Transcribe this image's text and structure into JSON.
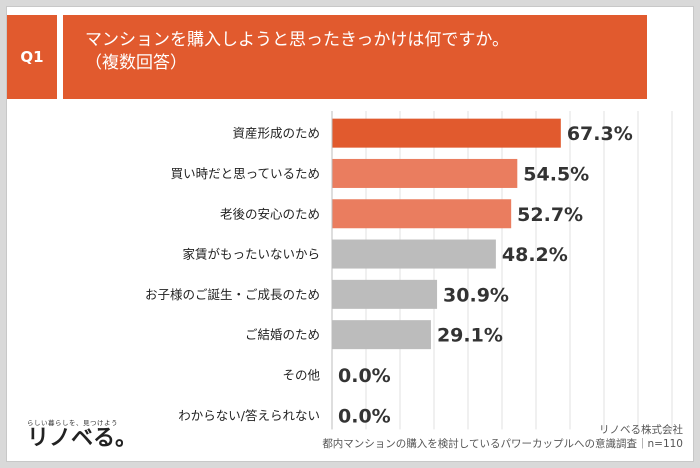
{
  "question": {
    "badge": "Q1",
    "title_line1": "マンションを購入しようと思ったきっかけは何ですか。",
    "title_line2": "（複数回答）"
  },
  "chart_data": {
    "type": "bar",
    "orientation": "horizontal",
    "categories": [
      "資産形成のため",
      "買い時だと思っているため",
      "老後の安心のため",
      "家賃がもったいないから",
      "お子様のご誕生・ご成長のため",
      "ご結婚のため",
      "その他",
      "わからない/答えられない"
    ],
    "values": [
      67.3,
      54.5,
      52.7,
      48.2,
      30.9,
      29.1,
      0.0,
      0.0
    ],
    "value_labels": [
      "67.3%",
      "54.5%",
      "52.7%",
      "48.2%",
      "30.9%",
      "29.1%",
      "0.0%",
      "0.0%"
    ],
    "bar_colors": [
      "#e15a2e",
      "#ea7d5f",
      "#ea7d5f",
      "#bcbcbc",
      "#bcbcbc",
      "#bcbcbc",
      "#bcbcbc",
      "#bcbcbc"
    ],
    "xlim": [
      0,
      100
    ],
    "grid": true
  },
  "footer": {
    "company": "リノベる株式会社",
    "survey": "都内マンションの購入を検討しているパワーカップルへの意識調査｜n=110"
  },
  "logo": {
    "tagline": "らしい暮らしを、見つけよう",
    "name": "リノベる。"
  }
}
